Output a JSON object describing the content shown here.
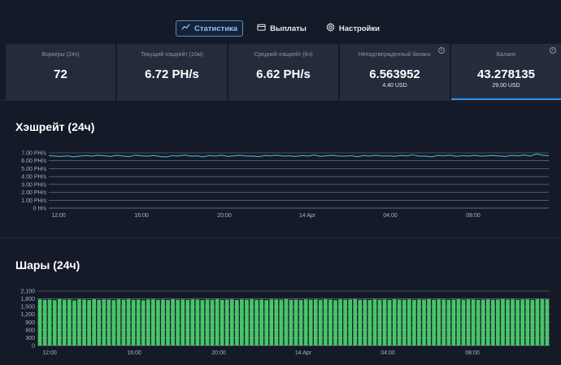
{
  "nav": {
    "tabs": [
      {
        "label": "Статистика",
        "icon": "chart-line-icon",
        "active": true
      },
      {
        "label": "Выплаты",
        "icon": "wallet-icon",
        "active": false
      },
      {
        "label": "Настройки",
        "icon": "gear-icon",
        "active": false
      }
    ]
  },
  "stats": [
    {
      "label": "Воркеры (24ч)",
      "value": "72",
      "sub": "",
      "info": false,
      "active": false
    },
    {
      "label": "Текущий хэшрейт (10м)",
      "value": "6.72 PH/s",
      "sub": "",
      "info": false,
      "active": false
    },
    {
      "label": "Средний хэшрейт (6ч)",
      "value": "6.62 PH/s",
      "sub": "",
      "info": false,
      "active": false
    },
    {
      "label": "Неподтвержденный баланс",
      "value": "6.563952",
      "sub": "4.40 USD",
      "info": true,
      "active": false
    },
    {
      "label": "Баланс",
      "value": "43.278135",
      "sub": "29.00 USD",
      "info": true,
      "active": true
    }
  ],
  "hashrate": {
    "title": "Хэшрейт (24ч)"
  },
  "shares": {
    "title": "Шары (24ч)"
  },
  "colors": {
    "accent": "#3390ec",
    "hash_line": "#3bb6c4",
    "bars": "#49c46a",
    "grid": "#c9ced8"
  },
  "chart_data": [
    {
      "type": "line",
      "title": "Хэшрейт (24ч)",
      "ylabel": "",
      "xlabel": "",
      "ylim": [
        0,
        7
      ],
      "y_ticks": [
        "0 H/s",
        "1.00 PH/s",
        "2.00 PH/s",
        "3.00 PH/s",
        "4.00 PH/s",
        "5.00 PH/s",
        "6.00 PH/s",
        "7.00 PH/s"
      ],
      "x_ticks": [
        "12:00",
        "16:00",
        "20:00",
        "14 Apr",
        "04:00",
        "08:00"
      ],
      "grid": true,
      "series": [
        {
          "values": [
            6.65,
            6.6,
            6.55,
            6.62,
            6.5,
            6.6,
            6.66,
            6.58,
            6.7,
            6.62,
            6.55,
            6.68,
            6.6,
            6.52,
            6.7,
            6.62,
            6.58,
            6.66,
            6.55,
            6.48,
            6.64,
            6.6,
            6.72,
            6.58,
            6.62,
            6.5,
            6.66,
            6.6,
            6.7,
            6.55,
            6.62,
            6.68,
            6.58,
            6.6,
            6.52,
            6.66,
            6.62,
            6.7,
            6.58,
            6.62,
            6.55,
            6.66,
            6.6,
            6.72,
            6.56,
            6.62,
            6.68,
            6.6,
            6.58,
            6.64,
            6.52,
            6.66,
            6.6,
            6.7,
            6.58,
            6.62,
            6.56,
            6.66,
            6.62,
            6.74,
            6.58,
            6.6,
            6.5,
            6.66,
            6.62,
            6.7,
            6.56,
            6.64,
            6.6,
            6.68,
            6.58,
            6.62,
            6.66,
            6.6,
            6.55,
            6.68,
            6.62,
            6.72,
            6.6,
            6.85,
            6.7,
            6.62
          ]
        }
      ]
    },
    {
      "type": "bar",
      "title": "Шары (24ч)",
      "ylabel": "",
      "xlabel": "",
      "ylim": [
        0,
        2100
      ],
      "y_ticks": [
        "0",
        "300",
        "600",
        "900",
        "1,200",
        "1,500",
        "1,800",
        "2,100"
      ],
      "x_ticks": [
        "12:00",
        "16:00",
        "20:00",
        "14 Apr",
        "04:00",
        "08:00"
      ],
      "grid": true,
      "series": [
        {
          "values": [
            1780,
            1760,
            1770,
            1750,
            1790,
            1765,
            1775,
            1740,
            1780,
            1770,
            1755,
            1785,
            1760,
            1775,
            1770,
            1750,
            1780,
            1765,
            1790,
            1760,
            1770,
            1745,
            1775,
            1780,
            1760,
            1770,
            1755,
            1785,
            1765,
            1775,
            1760,
            1780,
            1770,
            1750,
            1775,
            1765,
            1790,
            1760,
            1770,
            1780,
            1755,
            1775,
            1765,
            1785,
            1760,
            1770,
            1750,
            1780,
            1775,
            1765,
            1790,
            1760,
            1770,
            1755,
            1780,
            1765,
            1775,
            1760,
            1785,
            1770,
            1750,
            1780,
            1765,
            1775,
            1790,
            1760,
            1770,
            1755,
            1780,
            1765,
            1775,
            1760,
            1785,
            1770,
            1765,
            1780,
            1760,
            1775,
            1770,
            1790,
            1765,
            1780,
            1775,
            1760,
            1770,
            1785,
            1765,
            1780,
            1775,
            1760,
            1770,
            1780,
            1765,
            1775,
            1790,
            1770,
            1780,
            1765,
            1775,
            1780,
            1760,
            1790,
            1785,
            1780
          ]
        }
      ]
    }
  ]
}
